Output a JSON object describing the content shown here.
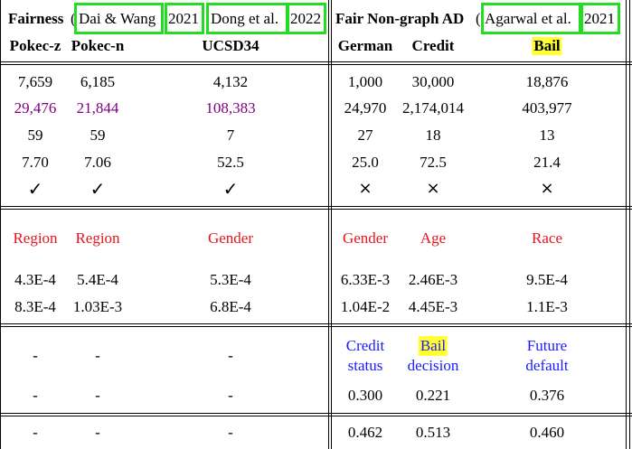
{
  "header": {
    "group1_label": "Fairness",
    "group1_open": "(",
    "group1_cite_author": "Dai & Wang",
    "group1_cite_year": "2021",
    "group1_cite2_author": "Dong et al.",
    "group1_cite2_year": "2022",
    "group2_label": "Fair Non-graph AD",
    "group2_open": "(",
    "group2_cite_author": "Agarwal et al.",
    "group2_cite_year": "2021",
    "datasets": [
      "Pokec-z",
      "Pokec-n",
      "UCSD34",
      "German",
      "Credit",
      "Bail"
    ]
  },
  "rows": {
    "r1": [
      "7,659",
      "6,185",
      "4,132",
      "1,000",
      "30,000",
      "18,876"
    ],
    "r2": [
      "29,476",
      "21,844",
      "108,383",
      "24,970",
      "2,174,014",
      "403,977"
    ],
    "r3": [
      "59",
      "59",
      "7",
      "27",
      "18",
      "13"
    ],
    "r4": [
      "7.70",
      "7.06",
      "52.5",
      "25.0",
      "72.5",
      "21.4"
    ],
    "r5": [
      "✓",
      "✓",
      "✓",
      "×",
      "×",
      "×"
    ],
    "sensitive": [
      "Region",
      "Region",
      "Gender",
      "Gender",
      "Age",
      "Race"
    ],
    "r7": [
      "4.3E-4",
      "5.4E-4",
      "5.3E-4",
      "6.33E-3",
      "2.46E-3",
      "9.5E-4"
    ],
    "r8": [
      "8.3E-4",
      "1.03E-3",
      "6.8E-4",
      "1.04E-2",
      "4.45E-3",
      "1.1E-3"
    ],
    "label_dash": [
      "-",
      "-",
      "-"
    ],
    "labels": {
      "german_1": "Credit",
      "german_2": "status",
      "credit_1": "Bail",
      "credit_2": "decision",
      "bail_1": "Future",
      "bail_2": "default"
    },
    "r10": [
      "-",
      "-",
      "-",
      "0.300",
      "0.221",
      "0.376"
    ],
    "r11": [
      "-",
      "-",
      "-",
      "0.462",
      "0.513",
      "0.460"
    ]
  },
  "colors": {
    "highlight_box": "#22dd22",
    "highlight_text_bg": "#ffff33",
    "purple_text": "#800080",
    "red_text": "#e8141c",
    "blue_text": "#1a1aff"
  }
}
